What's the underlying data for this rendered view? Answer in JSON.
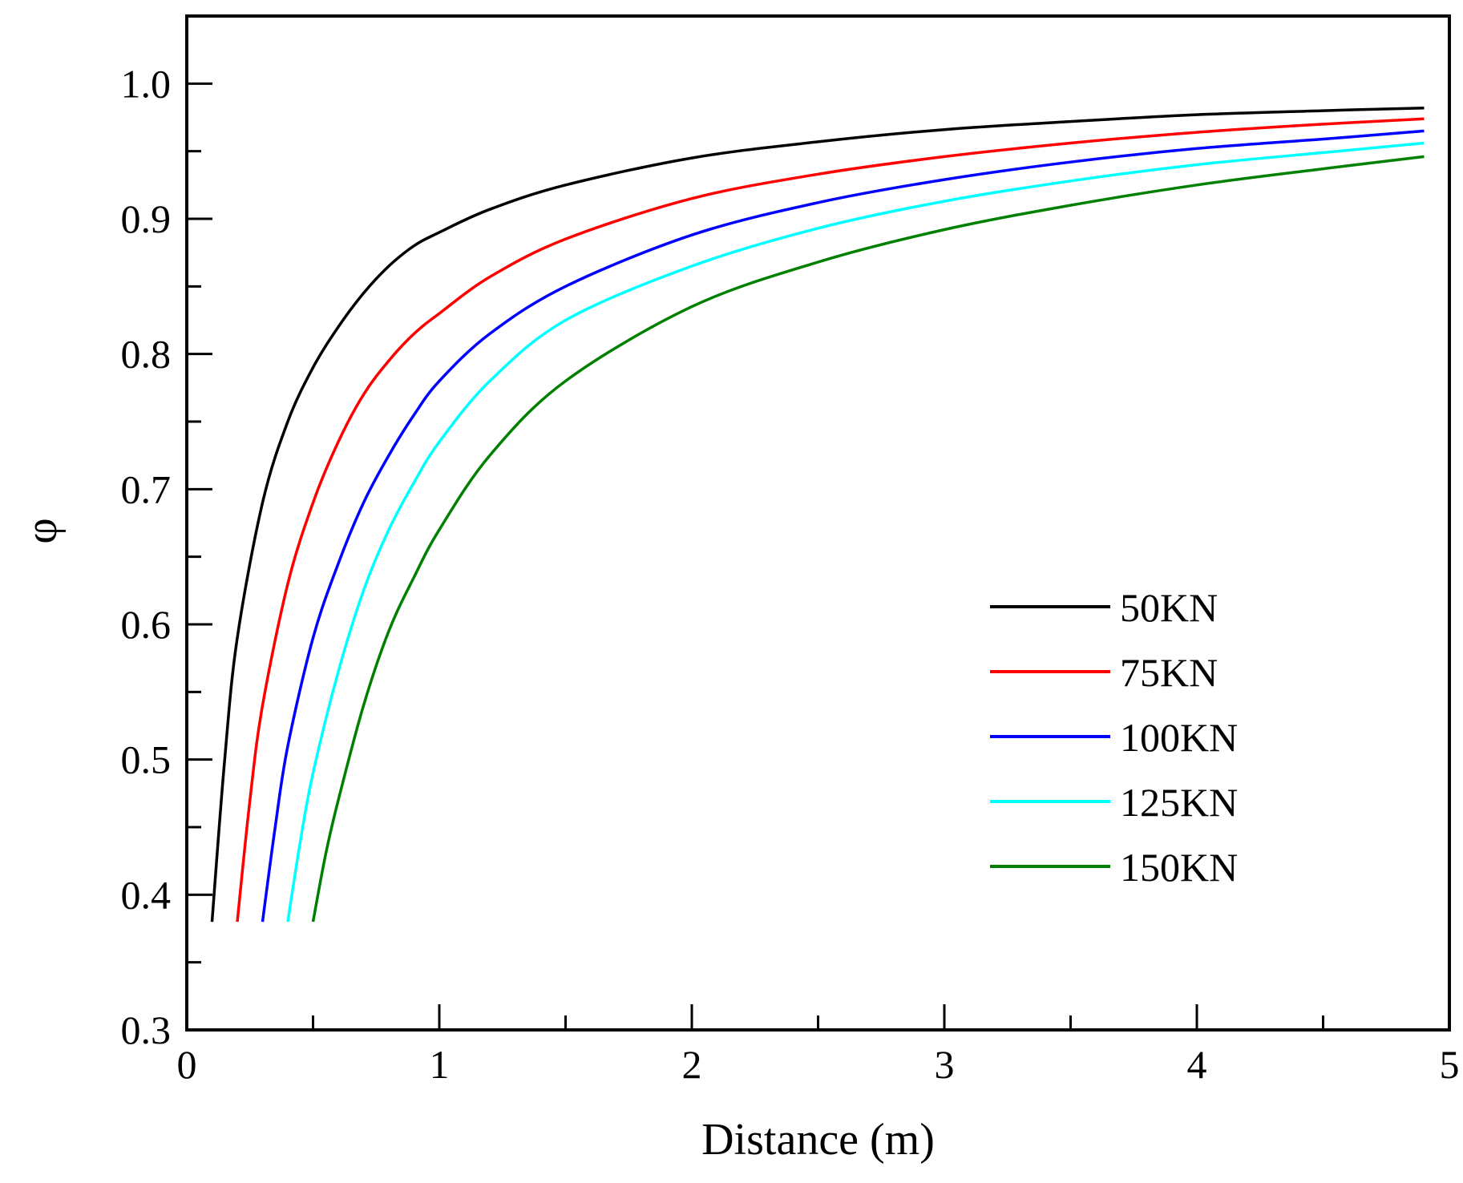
{
  "chart_data": {
    "type": "line",
    "title": "",
    "xlabel": "Distance (m)",
    "ylabel": "φ",
    "xlim": [
      0,
      5
    ],
    "ylim": [
      0.3,
      1.05
    ],
    "x_ticks": [
      0,
      1,
      2,
      3,
      4,
      5
    ],
    "x_tick_labels": [
      "0",
      "1",
      "2",
      "3",
      "4",
      "5"
    ],
    "x_minor_ticks": [
      0.5,
      1.5,
      2.5,
      3.5,
      4.5
    ],
    "y_ticks": [
      0.3,
      0.4,
      0.5,
      0.6,
      0.7,
      0.8,
      0.9,
      1.0
    ],
    "y_tick_labels": [
      "0.3",
      "0.4",
      "0.5",
      "0.6",
      "0.7",
      "0.8",
      "0.9",
      "1.0"
    ],
    "y_minor_ticks": [
      0.35,
      0.45,
      0.55,
      0.65,
      0.75,
      0.85,
      0.95
    ],
    "grid": false,
    "legend_position": "center-right",
    "series": [
      {
        "name": "50KN",
        "color": "#000000",
        "x": [
          0.1,
          0.15,
          0.2,
          0.3,
          0.4,
          0.5,
          0.6,
          0.7,
          0.8,
          0.9,
          1.0,
          1.2,
          1.5,
          2.0,
          2.5,
          3.0,
          3.5,
          4.0,
          4.5,
          4.9
        ],
        "y": [
          0.38,
          0.5,
          0.59,
          0.69,
          0.75,
          0.79,
          0.82,
          0.845,
          0.865,
          0.88,
          0.89,
          0.907,
          0.925,
          0.945,
          0.957,
          0.966,
          0.972,
          0.977,
          0.98,
          0.982
        ]
      },
      {
        "name": "75KN",
        "color": "#ff0000",
        "x": [
          0.2,
          0.25,
          0.3,
          0.4,
          0.5,
          0.6,
          0.7,
          0.8,
          0.9,
          1.0,
          1.2,
          1.5,
          2.0,
          2.5,
          3.0,
          3.5,
          4.0,
          4.5,
          4.9
        ],
        "y": [
          0.38,
          0.47,
          0.54,
          0.63,
          0.69,
          0.735,
          0.77,
          0.795,
          0.815,
          0.83,
          0.857,
          0.885,
          0.915,
          0.933,
          0.946,
          0.956,
          0.964,
          0.97,
          0.974
        ]
      },
      {
        "name": "100KN",
        "color": "#0000ff",
        "x": [
          0.3,
          0.35,
          0.4,
          0.5,
          0.6,
          0.7,
          0.8,
          0.9,
          1.0,
          1.2,
          1.5,
          2.0,
          2.5,
          3.0,
          3.5,
          4.0,
          4.5,
          4.9
        ],
        "y": [
          0.38,
          0.45,
          0.51,
          0.59,
          0.645,
          0.69,
          0.725,
          0.755,
          0.78,
          0.815,
          0.85,
          0.888,
          0.912,
          0.929,
          0.942,
          0.952,
          0.959,
          0.965
        ]
      },
      {
        "name": "125KN",
        "color": "#00ffff",
        "x": [
          0.4,
          0.45,
          0.5,
          0.6,
          0.7,
          0.8,
          0.9,
          1.0,
          1.2,
          1.5,
          2.0,
          2.5,
          3.0,
          3.5,
          4.0,
          4.5,
          4.9
        ],
        "y": [
          0.38,
          0.44,
          0.49,
          0.565,
          0.625,
          0.67,
          0.705,
          0.735,
          0.78,
          0.825,
          0.865,
          0.893,
          0.913,
          0.928,
          0.94,
          0.949,
          0.956
        ]
      },
      {
        "name": "150KN",
        "color": "#008000",
        "x": [
          0.5,
          0.55,
          0.6,
          0.7,
          0.8,
          0.9,
          1.0,
          1.2,
          1.5,
          2.0,
          2.5,
          3.0,
          3.5,
          4.0,
          4.5,
          4.9
        ],
        "y": [
          0.38,
          0.43,
          0.47,
          0.54,
          0.595,
          0.635,
          0.67,
          0.725,
          0.78,
          0.835,
          0.868,
          0.892,
          0.91,
          0.925,
          0.937,
          0.946
        ]
      }
    ]
  }
}
